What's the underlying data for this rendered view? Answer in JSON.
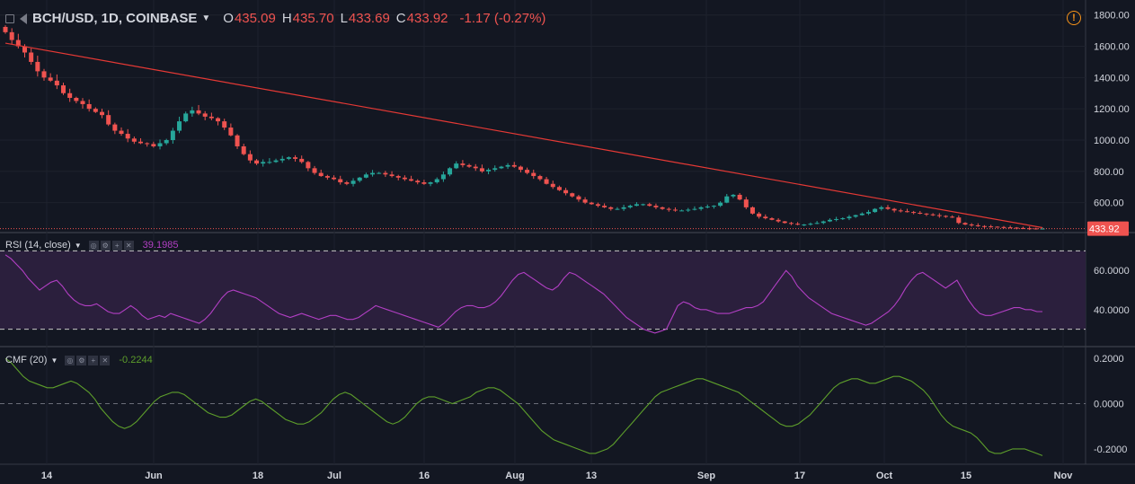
{
  "header": {
    "symbol": "BCH/USD, 1D, COINBASE",
    "open_label": "O",
    "open": "435.09",
    "high_label": "H",
    "high": "435.70",
    "low_label": "L",
    "low": "433.69",
    "close_label": "C",
    "close": "433.92",
    "change": "-1.17 (-0.27%)",
    "value_color": "#ef5350",
    "icons": [
      "menu-icon",
      "flag-icon",
      "chevron-down-icon",
      "alert-icon"
    ]
  },
  "rsi_panel": {
    "title": "RSI (14, close)",
    "value": "39.1985",
    "value_color": "#b23fc4"
  },
  "cmf_panel": {
    "title": "CMF (20)",
    "value": "-0.2244",
    "value_color": "#5d9e2b"
  },
  "panel_tool_icons": [
    "settings-icon",
    "gear-icon",
    "plus-icon",
    "close-icon"
  ],
  "price_badge": "433.92",
  "colors": {
    "background": "#131722",
    "up": "#26a69a",
    "down": "#ef5350",
    "trendline": "#e53935",
    "rsi_line": "#b23fc4",
    "rsi_band": "#2b1f3d",
    "cmf_line": "#5d9e2b",
    "axis_text": "#d1d4dc"
  },
  "chart_data": [
    {
      "type": "candlestick",
      "title": "BCH/USD, 1D, COINBASE",
      "x_ticks": [
        "14",
        "Jun",
        "18",
        "Jul",
        "16",
        "Aug",
        "13",
        "Sep",
        "17",
        "Oct",
        "15",
        "Nov"
      ],
      "y_ticks": [
        "1800.00",
        "1600.00",
        "1400.00",
        "1200.00",
        "1000.00",
        "800.00",
        "600.00"
      ],
      "ylim": [
        420,
        1850
      ],
      "close_path": [
        1690,
        1640,
        1600,
        1560,
        1500,
        1440,
        1400,
        1380,
        1350,
        1300,
        1270,
        1250,
        1230,
        1200,
        1180,
        1160,
        1100,
        1060,
        1040,
        1010,
        990,
        980,
        975,
        960,
        980,
        1000,
        1060,
        1120,
        1170,
        1190,
        1170,
        1150,
        1140,
        1120,
        1080,
        1030,
        960,
        910,
        870,
        850,
        860,
        860,
        870,
        880,
        890,
        880,
        860,
        820,
        790,
        770,
        760,
        750,
        730,
        720,
        740,
        760,
        780,
        790,
        790,
        780,
        770,
        760,
        750,
        740,
        730,
        720,
        730,
        750,
        780,
        820,
        850,
        840,
        830,
        820,
        800,
        810,
        820,
        830,
        840,
        830,
        810,
        790,
        770,
        750,
        720,
        700,
        680,
        660,
        640,
        620,
        600,
        590,
        580,
        570,
        560,
        560,
        570,
        580,
        590,
        590,
        580,
        570,
        560,
        555,
        550,
        550,
        555,
        560,
        570,
        575,
        580,
        600,
        640,
        650,
        620,
        570,
        530,
        510,
        500,
        490,
        480,
        470,
        465,
        460,
        460,
        465,
        470,
        480,
        490,
        495,
        500,
        510,
        520,
        530,
        540,
        560,
        570,
        560,
        550,
        545,
        540,
        535,
        530,
        525,
        520,
        515,
        510,
        505,
        470,
        460,
        455,
        450,
        448,
        446,
        444,
        442,
        440,
        438,
        436,
        435,
        434,
        434
      ],
      "trend_line": {
        "from": 1620,
        "to": 440
      },
      "last_bar": {
        "open": 435.09,
        "high": 435.7,
        "low": 433.69,
        "close": 433.92
      }
    },
    {
      "type": "line",
      "title": "RSI (14, close)",
      "y_ticks": [
        "60.0000",
        "40.0000"
      ],
      "ylim": [
        22,
        78
      ],
      "bands": [
        70,
        30
      ],
      "values": [
        68,
        66,
        63,
        60,
        56,
        53,
        50,
        52,
        54,
        55,
        52,
        48,
        45,
        43,
        42,
        42,
        43,
        41,
        39,
        38,
        38,
        40,
        42,
        40,
        37,
        35,
        36,
        37,
        36,
        38,
        37,
        36,
        35,
        34,
        33,
        35,
        38,
        42,
        46,
        49,
        50,
        49,
        48,
        47,
        46,
        44,
        42,
        40,
        38,
        37,
        36,
        37,
        38,
        37,
        36,
        35,
        36,
        37,
        37,
        36,
        35,
        35,
        36,
        38,
        40,
        42,
        41,
        40,
        39,
        38,
        37,
        36,
        35,
        34,
        33,
        32,
        31,
        33,
        36,
        39,
        41,
        42,
        42,
        41,
        41,
        42,
        44,
        47,
        51,
        55,
        58,
        59,
        57,
        55,
        53,
        51,
        50,
        52,
        56,
        59,
        58,
        56,
        54,
        52,
        50,
        48,
        45,
        42,
        39,
        36,
        34,
        32,
        30,
        29,
        28,
        29,
        30,
        36,
        42,
        44,
        43,
        41,
        40,
        40,
        39,
        38,
        38,
        38,
        39,
        40,
        41,
        41,
        42,
        44,
        48,
        52,
        56,
        60,
        57,
        52,
        49,
        46,
        44,
        42,
        40,
        38,
        37,
        36,
        35,
        34,
        33,
        32,
        33,
        35,
        37,
        39,
        42,
        46,
        51,
        55,
        58,
        59,
        57,
        55,
        53,
        51,
        53,
        55,
        50,
        45,
        41,
        38,
        37,
        37,
        38,
        39,
        40,
        41,
        41,
        40,
        40,
        39,
        39
      ]
    },
    {
      "type": "line",
      "title": "CMF (20)",
      "y_ticks": [
        "0.2000",
        "0.0000",
        "-0.2000"
      ],
      "ylim": [
        -0.26,
        0.24
      ],
      "zero_line": 0,
      "values": [
        0.2,
        0.18,
        0.15,
        0.12,
        0.1,
        0.09,
        0.08,
        0.07,
        0.07,
        0.08,
        0.09,
        0.1,
        0.09,
        0.07,
        0.05,
        0.02,
        -0.02,
        -0.05,
        -0.08,
        -0.1,
        -0.11,
        -0.1,
        -0.08,
        -0.05,
        -0.02,
        0.01,
        0.03,
        0.04,
        0.05,
        0.05,
        0.04,
        0.02,
        0.0,
        -0.02,
        -0.04,
        -0.05,
        -0.06,
        -0.06,
        -0.05,
        -0.03,
        -0.01,
        0.01,
        0.02,
        0.01,
        -0.01,
        -0.03,
        -0.05,
        -0.07,
        -0.08,
        -0.09,
        -0.09,
        -0.08,
        -0.06,
        -0.04,
        -0.01,
        0.02,
        0.04,
        0.05,
        0.04,
        0.02,
        0.0,
        -0.02,
        -0.04,
        -0.06,
        -0.08,
        -0.09,
        -0.08,
        -0.06,
        -0.03,
        0.0,
        0.02,
        0.03,
        0.03,
        0.02,
        0.01,
        0.0,
        0.01,
        0.02,
        0.03,
        0.05,
        0.06,
        0.07,
        0.07,
        0.06,
        0.04,
        0.02,
        0.0,
        -0.03,
        -0.06,
        -0.09,
        -0.12,
        -0.14,
        -0.16,
        -0.17,
        -0.18,
        -0.19,
        -0.2,
        -0.21,
        -0.22,
        -0.22,
        -0.21,
        -0.2,
        -0.18,
        -0.15,
        -0.12,
        -0.09,
        -0.06,
        -0.03,
        0.0,
        0.03,
        0.05,
        0.06,
        0.07,
        0.08,
        0.09,
        0.1,
        0.11,
        0.11,
        0.1,
        0.09,
        0.08,
        0.07,
        0.06,
        0.05,
        0.03,
        0.01,
        -0.01,
        -0.03,
        -0.05,
        -0.07,
        -0.09,
        -0.1,
        -0.1,
        -0.09,
        -0.07,
        -0.05,
        -0.02,
        0.01,
        0.04,
        0.07,
        0.09,
        0.1,
        0.11,
        0.11,
        0.1,
        0.09,
        0.09,
        0.1,
        0.11,
        0.12,
        0.12,
        0.11,
        0.1,
        0.08,
        0.06,
        0.03,
        -0.01,
        -0.05,
        -0.08,
        -0.1,
        -0.11,
        -0.12,
        -0.13,
        -0.15,
        -0.18,
        -0.21,
        -0.22,
        -0.22,
        -0.21,
        -0.2,
        -0.2,
        -0.2,
        -0.21,
        -0.22,
        -0.23
      ]
    }
  ]
}
